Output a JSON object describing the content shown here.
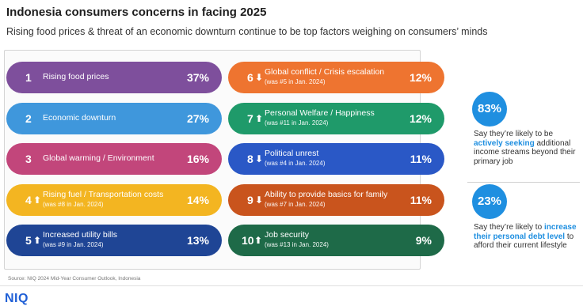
{
  "title": "Indonesia consumers concerns in facing 2025",
  "subtitle": "Rising food prices & threat of an economic downturn continue to be top factors weighing on consumers’ minds",
  "chart_data": {
    "type": "table",
    "columns": [
      [
        {
          "rank": "1",
          "label": "Rising food prices",
          "note": "",
          "value": "37%",
          "trend": "",
          "color": "#7e4f9c"
        },
        {
          "rank": "2",
          "label": "Economic downturn",
          "note": "",
          "value": "27%",
          "trend": "",
          "color": "#3f97dc"
        },
        {
          "rank": "3",
          "label": "Global warming / Environment",
          "note": "",
          "value": "16%",
          "trend": "",
          "color": "#c2467b"
        },
        {
          "rank": "4",
          "label": "Rising fuel / Transportation costs",
          "note": "(was #8 in Jan. 2024)",
          "value": "14%",
          "trend": "up",
          "color": "#f3b521"
        },
        {
          "rank": "5",
          "label": "Increased utility bills",
          "note": "(was #9 in Jan. 2024)",
          "value": "13%",
          "trend": "up",
          "color": "#1f4595"
        }
      ],
      [
        {
          "rank": "6",
          "label": "Global conflict / Crisis escalation",
          "note": "(was #5 in Jan. 2024)",
          "value": "12%",
          "trend": "down",
          "color": "#ee7430"
        },
        {
          "rank": "7",
          "label": "Personal Welfare / Happiness",
          "note": "(was #11 in Jan. 2024)",
          "value": "12%",
          "trend": "up",
          "color": "#1f9a6a"
        },
        {
          "rank": "8",
          "label": "Political unrest",
          "note": "(was #4 in Jan. 2024)",
          "value": "11%",
          "trend": "down",
          "color": "#2a58c6"
        },
        {
          "rank": "9",
          "label": "Ability to provide basics for family",
          "note": "(was #7 in Jan. 2024)",
          "value": "11%",
          "trend": "down",
          "color": "#c9541d"
        },
        {
          "rank": "10",
          "label": "Job security",
          "note": "(was #13 in Jan. 2024)",
          "value": "9%",
          "trend": "up",
          "color": "#1e6a48"
        }
      ]
    ]
  },
  "stats": [
    {
      "value": "83%",
      "text_before": "Say they’re likely to be",
      "highlight": "actively seeking",
      "text_after": "additional income streams beyond their primary job"
    },
    {
      "value": "23%",
      "text_before": "Say they’re likely to",
      "highlight": "increase their personal debt level",
      "text_after": "to afford their current lifestyle"
    }
  ],
  "source": "Source: NIQ 2024 Mid-Year Consumer Outlook, Indonesia",
  "logo": "NIQ",
  "colors": {
    "accent": "#1f8fe0",
    "logo": "#1f5fd6"
  }
}
